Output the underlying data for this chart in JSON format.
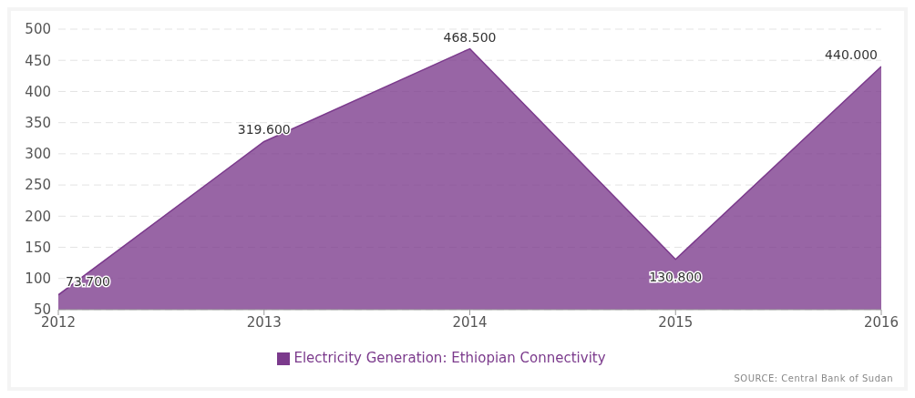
{
  "chart_data": {
    "type": "area",
    "x": [
      2012,
      2013,
      2014,
      2015,
      2016
    ],
    "series": [
      {
        "name": "Electricity Generation: Ethiopian Connectivity",
        "color": "#7b3a8c",
        "values": [
          73.7,
          319.6,
          468.5,
          130.8,
          440.0
        ],
        "value_labels": [
          "73.700",
          "319.600",
          "468.500",
          "130.800",
          "440.000"
        ]
      }
    ],
    "xlim": [
      2012,
      2016
    ],
    "xticks": [
      2012,
      2013,
      2014,
      2015,
      2016
    ],
    "ylim": [
      50,
      500
    ],
    "yticks": [
      50,
      100,
      150,
      200,
      250,
      300,
      350,
      400,
      450,
      500
    ],
    "grid": "y",
    "legend": "bottom",
    "marker": "none",
    "annotations": [
      "SOURCE: Central Bank of Sudan"
    ]
  }
}
